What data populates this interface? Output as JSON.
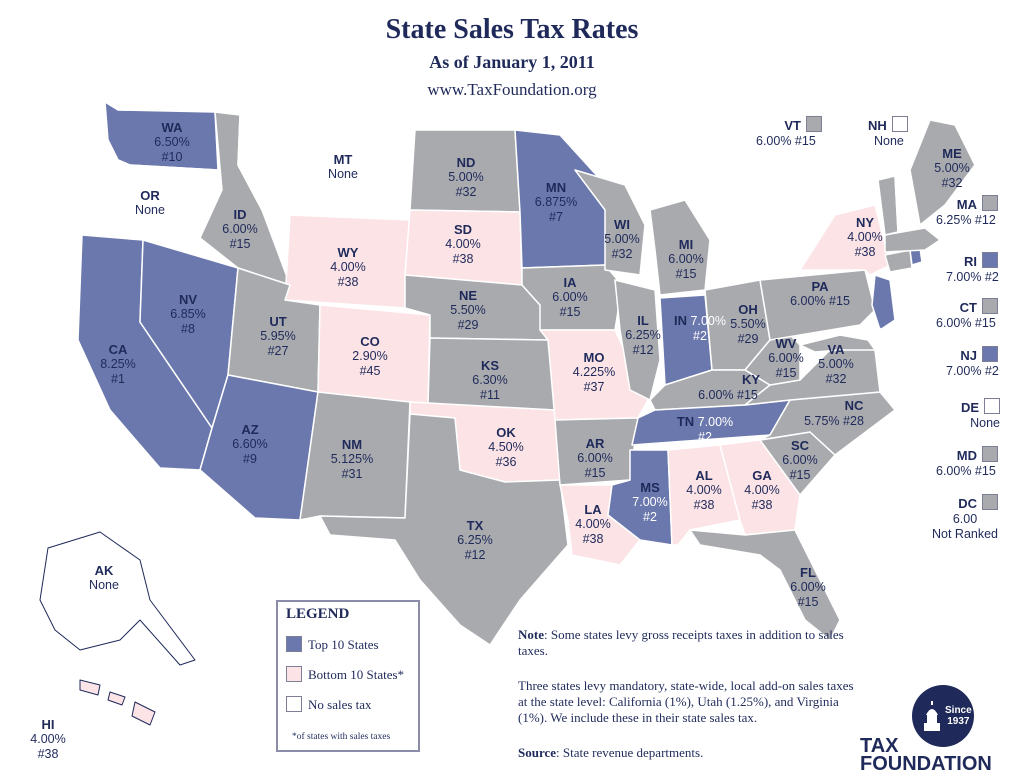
{
  "header": {
    "title": "State Sales Tax Rates",
    "subtitle": "As of January 1, 2011",
    "url": "www.TaxFoundation.org"
  },
  "colors": {
    "top10": "#6b78ad",
    "bottom10": "#fbe3e6",
    "none": "#ffffff",
    "other": "#a9aaae",
    "border": "#ffffff",
    "text": "#1f2a5a"
  },
  "states": {
    "WA": {
      "abbr": "WA",
      "rate": "6.50%",
      "rank": "#10"
    },
    "OR": {
      "abbr": "OR",
      "rate": "None",
      "rank": ""
    },
    "CA": {
      "abbr": "CA",
      "rate": "8.25%",
      "rank": "#1"
    },
    "NV": {
      "abbr": "NV",
      "rate": "6.85%",
      "rank": "#8"
    },
    "ID": {
      "abbr": "ID",
      "rate": "6.00%",
      "rank": "#15"
    },
    "MT": {
      "abbr": "MT",
      "rate": "None",
      "rank": ""
    },
    "WY": {
      "abbr": "WY",
      "rate": "4.00%",
      "rank": "#38"
    },
    "UT": {
      "abbr": "UT",
      "rate": "5.95%",
      "rank": "#27"
    },
    "AZ": {
      "abbr": "AZ",
      "rate": "6.60%",
      "rank": "#9"
    },
    "CO": {
      "abbr": "CO",
      "rate": "2.90%",
      "rank": "#45"
    },
    "NM": {
      "abbr": "NM",
      "rate": "5.125%",
      "rank": "#31"
    },
    "ND": {
      "abbr": "ND",
      "rate": "5.00%",
      "rank": "#32"
    },
    "SD": {
      "abbr": "SD",
      "rate": "4.00%",
      "rank": "#38"
    },
    "NE": {
      "abbr": "NE",
      "rate": "5.50%",
      "rank": "#29"
    },
    "KS": {
      "abbr": "KS",
      "rate": "6.30%",
      "rank": "#11"
    },
    "OK": {
      "abbr": "OK",
      "rate": "4.50%",
      "rank": "#36"
    },
    "TX": {
      "abbr": "TX",
      "rate": "6.25%",
      "rank": "#12"
    },
    "MN": {
      "abbr": "MN",
      "rate": "6.875%",
      "rank": "#7"
    },
    "IA": {
      "abbr": "IA",
      "rate": "6.00%",
      "rank": "#15"
    },
    "MO": {
      "abbr": "MO",
      "rate": "4.225%",
      "rank": "#37"
    },
    "AR": {
      "abbr": "AR",
      "rate": "6.00%",
      "rank": "#15"
    },
    "LA": {
      "abbr": "LA",
      "rate": "4.00%",
      "rank": "#38"
    },
    "WI": {
      "abbr": "WI",
      "rate": "5.00%",
      "rank": "#32"
    },
    "IL": {
      "abbr": "IL",
      "rate": "6.25%",
      "rank": "#12"
    },
    "MI": {
      "abbr": "MI",
      "rate": "6.00%",
      "rank": "#15"
    },
    "IN": {
      "abbr": "IN",
      "rate": "7.00%",
      "rank": "#2"
    },
    "OH": {
      "abbr": "OH",
      "rate": "5.50%",
      "rank": "#29"
    },
    "KY": {
      "abbr": "KY",
      "rate": "6.00%",
      "rank": "#15"
    },
    "TN": {
      "abbr": "TN",
      "rate": "7.00%",
      "rank": "#2"
    },
    "MS": {
      "abbr": "MS",
      "rate": "7.00%",
      "rank": "#2"
    },
    "AL": {
      "abbr": "AL",
      "rate": "4.00%",
      "rank": "#38"
    },
    "GA": {
      "abbr": "GA",
      "rate": "4.00%",
      "rank": "#38"
    },
    "FL": {
      "abbr": "FL",
      "rate": "6.00%",
      "rank": "#15"
    },
    "SC": {
      "abbr": "SC",
      "rate": "6.00%",
      "rank": "#15"
    },
    "NC": {
      "abbr": "NC",
      "rate": "5.75%",
      "rank": "#28"
    },
    "VA": {
      "abbr": "VA",
      "rate": "5.00%",
      "rank": "#32"
    },
    "WV": {
      "abbr": "WV",
      "rate": "6.00%",
      "rank": "#15"
    },
    "PA": {
      "abbr": "PA",
      "rate": "6.00%",
      "rank": "#15"
    },
    "NY": {
      "abbr": "NY",
      "rate": "4.00%",
      "rank": "#38"
    },
    "ME": {
      "abbr": "ME",
      "rate": "5.00%",
      "rank": "#32"
    },
    "AK": {
      "abbr": "AK",
      "rate": "None",
      "rank": ""
    },
    "HI": {
      "abbr": "HI",
      "rate": "4.00%",
      "rank": "#38"
    }
  },
  "side_states": {
    "VT": {
      "abbr": "VT",
      "value": "6.00% #15"
    },
    "NH": {
      "abbr": "NH",
      "value": "None"
    },
    "MA": {
      "abbr": "MA",
      "value": "6.25% #12"
    },
    "RI": {
      "abbr": "RI",
      "value": "7.00% #2"
    },
    "CT": {
      "abbr": "CT",
      "value": "6.00% #15"
    },
    "NJ": {
      "abbr": "NJ",
      "value": "7.00% #2"
    },
    "DE": {
      "abbr": "DE",
      "value": "None"
    },
    "MD": {
      "abbr": "MD",
      "value": "6.00% #15"
    },
    "DC": {
      "abbr": "DC",
      "value": "6.00",
      "value2": "Not Ranked"
    }
  },
  "legend": {
    "title": "LEGEND",
    "top": "Top 10 States",
    "bottom": "Bottom 10 States*",
    "none": "No sales tax",
    "footnote": "*of states with sales taxes"
  },
  "notes": {
    "note_label": "Note",
    "note_text": ": Some states levy gross receipts taxes in addition to sales taxes.",
    "para2": "Three states levy mandatory, state-wide, local add-on sales taxes at the state level: California (1%), Utah (1.25%), and Virginia (1%). We include these in their state sales tax.",
    "source_label": "Source",
    "source_text": ": State revenue departments."
  },
  "logo": {
    "since": "Since",
    "year": "1937",
    "tax": "TAX",
    "foundation": "FOUNDATION"
  }
}
